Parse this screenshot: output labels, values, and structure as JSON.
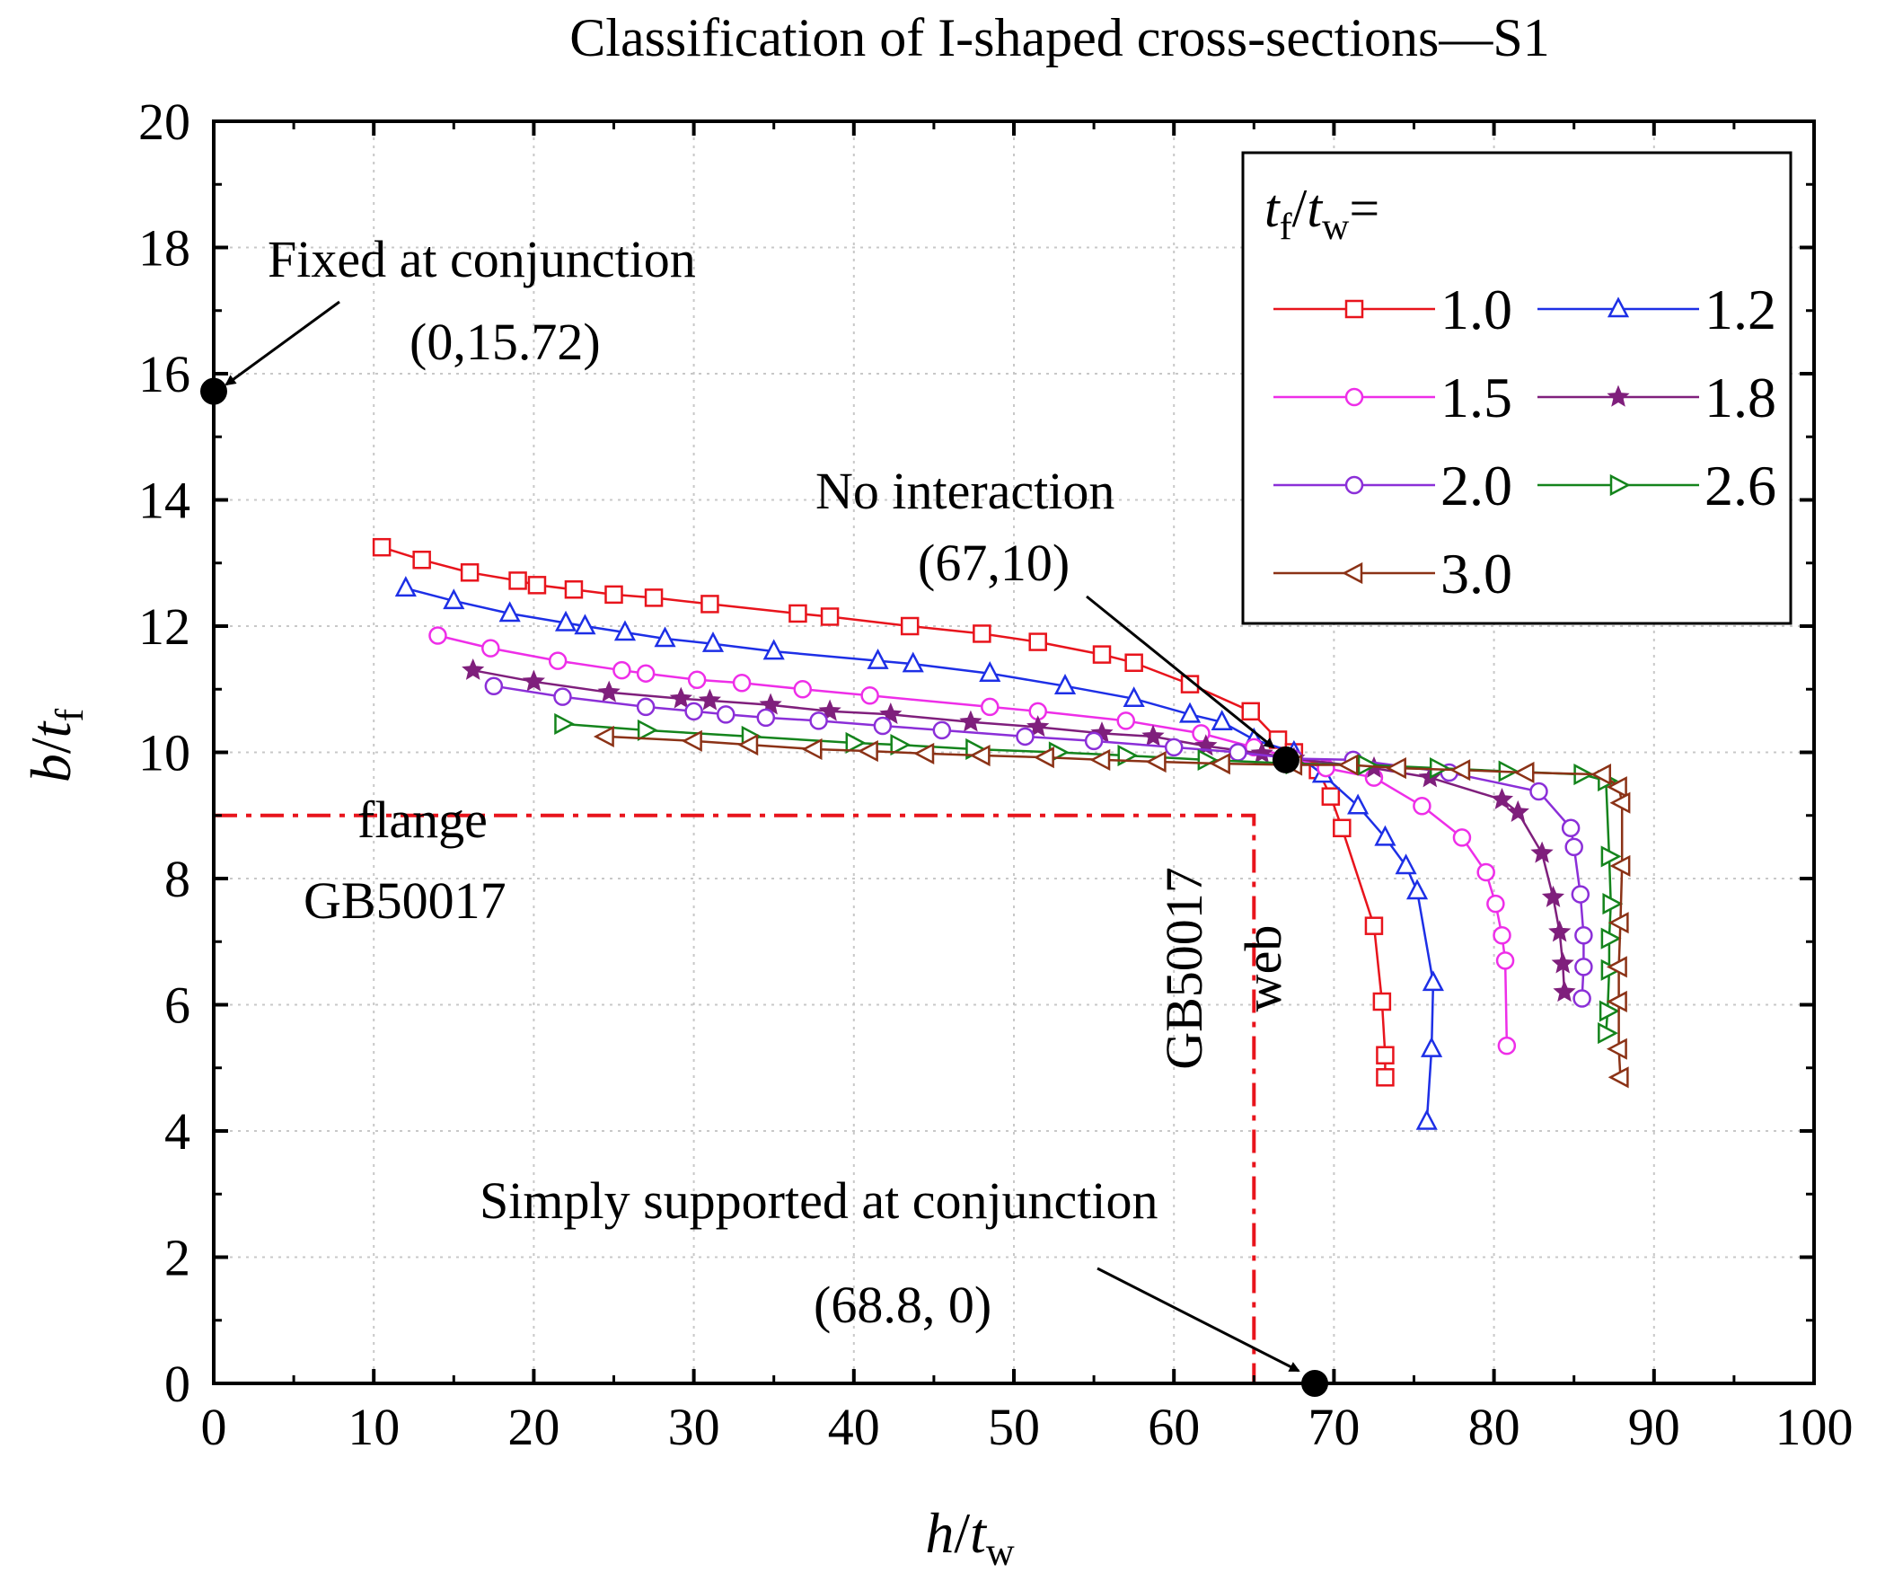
{
  "chart_data": {
    "type": "line",
    "title": "Classification of I-shaped cross-sections—S1",
    "xlabel": "h/tw",
    "ylabel": "b/tf",
    "xlim": [
      0,
      100
    ],
    "ylim": [
      0,
      20
    ],
    "x_ticks": [
      0,
      10,
      20,
      30,
      40,
      50,
      60,
      70,
      80,
      90,
      100
    ],
    "y_ticks": [
      0,
      2,
      4,
      6,
      8,
      10,
      12,
      14,
      16,
      18,
      20
    ],
    "x_tick_labels": [
      "0",
      "10",
      "20",
      "30",
      "40",
      "50",
      "60",
      "70",
      "80",
      "90",
      "100"
    ],
    "y_tick_labels": [
      "0",
      "2",
      "4",
      "6",
      "8",
      "10",
      "12",
      "14",
      "16",
      "18",
      "20"
    ],
    "grid": true,
    "legend_position": "top-right",
    "legend_title": "tf/tw=",
    "series": [
      {
        "name": "1.0",
        "color": "#e8141c",
        "marker": "square",
        "points": [
          [
            10.5,
            13.25
          ],
          [
            13.0,
            13.05
          ],
          [
            16.0,
            12.85
          ],
          [
            19.0,
            12.72
          ],
          [
            20.2,
            12.65
          ],
          [
            22.5,
            12.58
          ],
          [
            25.0,
            12.5
          ],
          [
            27.5,
            12.45
          ],
          [
            31.0,
            12.35
          ],
          [
            36.5,
            12.2
          ],
          [
            38.5,
            12.15
          ],
          [
            43.5,
            12.0
          ],
          [
            48.0,
            11.88
          ],
          [
            51.5,
            11.75
          ],
          [
            55.5,
            11.55
          ],
          [
            57.5,
            11.42
          ],
          [
            61.0,
            11.08
          ],
          [
            64.8,
            10.65
          ],
          [
            66.5,
            10.2
          ],
          [
            67.5,
            10.0
          ],
          [
            69.0,
            9.72
          ],
          [
            69.8,
            9.3
          ],
          [
            70.5,
            8.8
          ],
          [
            72.5,
            7.25
          ],
          [
            73.0,
            6.05
          ],
          [
            73.2,
            5.2
          ],
          [
            73.2,
            4.85
          ]
        ]
      },
      {
        "name": "1.2",
        "color": "#1d2fe6",
        "marker": "triangle-up",
        "points": [
          [
            12.0,
            12.6
          ],
          [
            15.0,
            12.4
          ],
          [
            18.5,
            12.2
          ],
          [
            22.0,
            12.05
          ],
          [
            23.2,
            12.0
          ],
          [
            25.7,
            11.9
          ],
          [
            28.2,
            11.8
          ],
          [
            31.2,
            11.72
          ],
          [
            35.0,
            11.6
          ],
          [
            41.5,
            11.45
          ],
          [
            43.7,
            11.4
          ],
          [
            48.5,
            11.25
          ],
          [
            53.2,
            11.05
          ],
          [
            57.5,
            10.85
          ],
          [
            61.0,
            10.6
          ],
          [
            63.0,
            10.48
          ],
          [
            65.0,
            10.2
          ],
          [
            67.5,
            10.0
          ],
          [
            69.3,
            9.65
          ],
          [
            71.5,
            9.15
          ],
          [
            73.2,
            8.65
          ],
          [
            74.5,
            8.2
          ],
          [
            75.2,
            7.8
          ],
          [
            76.2,
            6.35
          ],
          [
            76.1,
            5.3
          ],
          [
            75.8,
            4.15
          ]
        ]
      },
      {
        "name": "1.5",
        "color": "#ee2ee8",
        "marker": "circle",
        "points": [
          [
            14.0,
            11.85
          ],
          [
            17.3,
            11.65
          ],
          [
            21.5,
            11.45
          ],
          [
            25.5,
            11.3
          ],
          [
            27.0,
            11.25
          ],
          [
            30.2,
            11.15
          ],
          [
            33.0,
            11.1
          ],
          [
            36.8,
            11.0
          ],
          [
            41.0,
            10.9
          ],
          [
            48.5,
            10.72
          ],
          [
            51.5,
            10.65
          ],
          [
            57.0,
            10.5
          ],
          [
            61.7,
            10.3
          ],
          [
            65.0,
            10.08
          ],
          [
            67.5,
            9.9
          ],
          [
            69.5,
            9.75
          ],
          [
            72.5,
            9.6
          ],
          [
            75.5,
            9.15
          ],
          [
            78.0,
            8.65
          ],
          [
            79.5,
            8.1
          ],
          [
            80.1,
            7.6
          ],
          [
            80.5,
            7.1
          ],
          [
            80.7,
            6.7
          ],
          [
            80.8,
            5.35
          ]
        ]
      },
      {
        "name": "1.8",
        "color": "#7f1f7c",
        "marker": "star",
        "points": [
          [
            16.2,
            11.3
          ],
          [
            20.0,
            11.12
          ],
          [
            24.7,
            10.95
          ],
          [
            29.2,
            10.85
          ],
          [
            31.0,
            10.82
          ],
          [
            34.8,
            10.75
          ],
          [
            38.5,
            10.65
          ],
          [
            42.3,
            10.6
          ],
          [
            47.3,
            10.48
          ],
          [
            51.5,
            10.4
          ],
          [
            55.5,
            10.3
          ],
          [
            58.7,
            10.25
          ],
          [
            62.0,
            10.1
          ],
          [
            65.5,
            9.98
          ],
          [
            67.5,
            9.9
          ],
          [
            72.5,
            9.75
          ],
          [
            76.0,
            9.6
          ],
          [
            80.5,
            9.25
          ],
          [
            81.5,
            9.05
          ],
          [
            83.0,
            8.4
          ],
          [
            83.7,
            7.7
          ],
          [
            84.1,
            7.15
          ],
          [
            84.3,
            6.65
          ],
          [
            84.4,
            6.2
          ]
        ]
      },
      {
        "name": "2.0",
        "color": "#8b2fd8",
        "marker": "circle",
        "points": [
          [
            17.5,
            11.05
          ],
          [
            21.8,
            10.88
          ],
          [
            27.0,
            10.72
          ],
          [
            30.0,
            10.65
          ],
          [
            32.0,
            10.6
          ],
          [
            34.5,
            10.55
          ],
          [
            37.8,
            10.5
          ],
          [
            41.8,
            10.42
          ],
          [
            45.5,
            10.35
          ],
          [
            50.7,
            10.25
          ],
          [
            55.0,
            10.18
          ],
          [
            60.0,
            10.08
          ],
          [
            64.0,
            10.0
          ],
          [
            67.5,
            9.9
          ],
          [
            71.2,
            9.88
          ],
          [
            77.2,
            9.68
          ],
          [
            82.8,
            9.38
          ],
          [
            84.8,
            8.8
          ],
          [
            85.0,
            8.5
          ],
          [
            85.4,
            7.75
          ],
          [
            85.6,
            7.1
          ],
          [
            85.6,
            6.6
          ],
          [
            85.5,
            6.1
          ]
        ]
      },
      {
        "name": "2.6",
        "color": "#14841c",
        "marker": "triangle-right",
        "points": [
          [
            21.8,
            10.45
          ],
          [
            27.0,
            10.35
          ],
          [
            33.5,
            10.25
          ],
          [
            40.0,
            10.15
          ],
          [
            42.8,
            10.12
          ],
          [
            47.5,
            10.05
          ],
          [
            52.7,
            10.0
          ],
          [
            57.0,
            9.95
          ],
          [
            62.0,
            9.88
          ],
          [
            67.5,
            9.82
          ],
          [
            72.0,
            9.8
          ],
          [
            76.5,
            9.75
          ],
          [
            80.8,
            9.7
          ],
          [
            85.5,
            9.65
          ],
          [
            87.0,
            9.55
          ],
          [
            87.2,
            8.35
          ],
          [
            87.3,
            7.6
          ],
          [
            87.2,
            7.05
          ],
          [
            87.2,
            6.55
          ],
          [
            87.1,
            5.9
          ],
          [
            87.0,
            5.55
          ]
        ]
      },
      {
        "name": "3.0",
        "color": "#8b3216",
        "marker": "triangle-left",
        "points": [
          [
            24.5,
            10.25
          ],
          [
            30.0,
            10.18
          ],
          [
            33.5,
            10.12
          ],
          [
            37.5,
            10.05
          ],
          [
            41.0,
            10.02
          ],
          [
            44.5,
            9.98
          ],
          [
            48.0,
            9.95
          ],
          [
            52.0,
            9.92
          ],
          [
            55.5,
            9.88
          ],
          [
            59.0,
            9.85
          ],
          [
            63.0,
            9.82
          ],
          [
            67.5,
            9.8
          ],
          [
            71.0,
            9.8
          ],
          [
            74.0,
            9.75
          ],
          [
            78.0,
            9.72
          ],
          [
            82.0,
            9.68
          ],
          [
            86.8,
            9.65
          ],
          [
            87.8,
            9.45
          ],
          [
            88.0,
            9.2
          ],
          [
            88.0,
            8.2
          ],
          [
            87.9,
            7.3
          ],
          [
            87.8,
            6.6
          ],
          [
            87.8,
            6.05
          ],
          [
            87.8,
            5.3
          ],
          [
            87.9,
            4.85
          ]
        ]
      }
    ],
    "key_points": [
      {
        "x": 0,
        "y": 15.72
      },
      {
        "x": 67,
        "y": 9.88
      },
      {
        "x": 68.8,
        "y": 0
      }
    ],
    "reference_lines": {
      "flange_y": 9.0,
      "web_x": 65.0,
      "color": "#e8141c"
    },
    "annotations": {
      "fixed_label": "Fixed at conjunction",
      "fixed_coord": "(0,15.72)",
      "no_interaction_label": "No interaction",
      "no_interaction_coord": "(67,10)",
      "simply_label": "Simply supported at conjunction",
      "simply_coord": "(68.8, 0)",
      "flange_label_1": "flange",
      "flange_label_2": "GB50017",
      "web_label_1": "GB50017",
      "web_label_2": "web"
    }
  }
}
